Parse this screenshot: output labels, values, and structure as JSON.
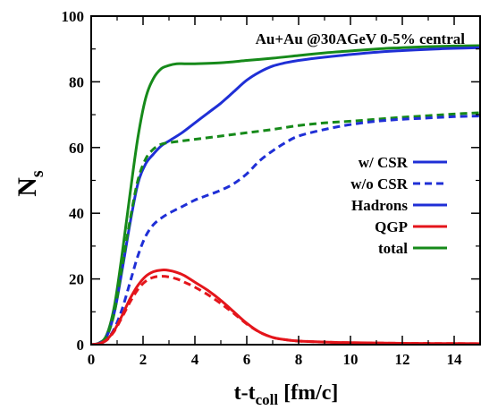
{
  "chart_data": {
    "type": "line",
    "annotation": "Au+Au @30AGeV 0-5% central",
    "xlabel": {
      "main": "t-t",
      "sub": "coll",
      "unit": " [fm/c]"
    },
    "ylabel": {
      "main": "N",
      "sub": "s"
    },
    "xlim": [
      0,
      15
    ],
    "ylim": [
      0,
      100
    ],
    "x_ticks": [
      0,
      2,
      4,
      6,
      8,
      10,
      12,
      14
    ],
    "y_ticks": [
      0,
      20,
      40,
      60,
      80,
      100
    ],
    "grid": false,
    "legend_position": "right-middle",
    "legend": [
      {
        "label": "w/  CSR",
        "color": "#1f2fd6",
        "dash": "solid"
      },
      {
        "label": "w/o CSR",
        "color": "#1f2fd6",
        "dash": "dashed"
      },
      {
        "label": "Hadrons",
        "color": "#1f2fd6",
        "dash": "solid"
      },
      {
        "label": "QGP",
        "color": "#e4151b",
        "dash": "solid"
      },
      {
        "label": "total",
        "color": "#168a1a",
        "dash": "solid"
      }
    ],
    "series": [
      {
        "key": "total_csr",
        "color": "#168a1a",
        "dash": "solid",
        "x": [
          0,
          0.3,
          0.6,
          0.9,
          1.2,
          1.5,
          1.8,
          2.1,
          2.4,
          2.7,
          3.0,
          3.3,
          3.6,
          4.0,
          5.0,
          6.0,
          7.0,
          8.0,
          9.0,
          10.0,
          11.0,
          12.0,
          13.0,
          14.0,
          15.0
        ],
        "y": [
          0,
          0.5,
          3,
          12,
          28,
          46,
          63,
          75,
          81,
          84,
          85,
          85.5,
          85.5,
          85.5,
          85.8,
          86.5,
          87.2,
          88,
          88.8,
          89.4,
          90,
          90.4,
          90.7,
          90.9,
          91
        ]
      },
      {
        "key": "hadron_csr",
        "color": "#1f2fd6",
        "dash": "solid",
        "x": [
          0,
          0.3,
          0.6,
          0.9,
          1.2,
          1.5,
          1.8,
          2.1,
          2.4,
          2.7,
          3.0,
          3.5,
          4.0,
          4.5,
          5.0,
          5.5,
          6.0,
          6.5,
          7.0,
          7.5,
          8.0,
          9.0,
          10.0,
          11.0,
          12.0,
          13.0,
          14.0,
          15.0
        ],
        "y": [
          0,
          0.4,
          2.5,
          10,
          23,
          37,
          49,
          55,
          58,
          60.5,
          62,
          64.5,
          67.5,
          70.5,
          73.5,
          77,
          80.5,
          83,
          84.8,
          85.8,
          86.5,
          87.5,
          88.3,
          89,
          89.5,
          89.9,
          90.2,
          90.4
        ]
      },
      {
        "key": "total_nocsr",
        "color": "#168a1a",
        "dash": "dashed",
        "x": [
          0,
          0.3,
          0.6,
          0.9,
          1.2,
          1.5,
          1.8,
          2.1,
          2.4,
          2.7,
          3.0,
          3.5,
          4.0,
          5.0,
          6.0,
          7.0,
          8.0,
          9.0,
          10.0,
          11.0,
          12.0,
          13.0,
          14.0,
          15.0
        ],
        "y": [
          0,
          0.4,
          2.5,
          10,
          24,
          38,
          50,
          56.5,
          59.5,
          61,
          61.5,
          62,
          62.5,
          63.5,
          64.5,
          65.5,
          66.7,
          67.5,
          68,
          68.6,
          69.2,
          69.7,
          70.2,
          70.6
        ]
      },
      {
        "key": "hadron_nocsr",
        "color": "#1f2fd6",
        "dash": "dashed",
        "x": [
          0,
          0.3,
          0.6,
          0.9,
          1.2,
          1.5,
          1.8,
          2.1,
          2.4,
          2.7,
          3.0,
          3.5,
          4.0,
          4.5,
          5.0,
          5.5,
          6.0,
          6.5,
          7.0,
          7.5,
          8.0,
          9.0,
          10.0,
          11.0,
          12.0,
          13.0,
          14.0,
          15.0
        ],
        "y": [
          0,
          0.3,
          1.5,
          5,
          11,
          19,
          27,
          33,
          36.5,
          38.5,
          40,
          42,
          44,
          45.5,
          47,
          49,
          52,
          56,
          59,
          61.5,
          63.5,
          65.5,
          67,
          68,
          68.6,
          69,
          69.4,
          69.6
        ]
      },
      {
        "key": "qgp_csr",
        "color": "#e4151b",
        "dash": "solid",
        "x": [
          0,
          0.3,
          0.6,
          0.9,
          1.2,
          1.5,
          1.8,
          2.1,
          2.4,
          2.7,
          3.0,
          3.3,
          3.6,
          4.0,
          4.5,
          5.0,
          5.5,
          6.0,
          6.5,
          7.0,
          7.5,
          8.0,
          9.0,
          10.0,
          12.0,
          15.0
        ],
        "y": [
          0,
          0.3,
          1.5,
          4.5,
          9,
          14,
          18,
          20.8,
          22.2,
          22.7,
          22.6,
          22,
          21,
          19,
          16.5,
          13.5,
          10,
          6.5,
          3.8,
          2.2,
          1.5,
          1.1,
          0.8,
          0.6,
          0.4,
          0.3
        ]
      },
      {
        "key": "qgp_nocsr",
        "color": "#e4151b",
        "dash": "dashed",
        "x": [
          0,
          0.3,
          0.6,
          0.9,
          1.2,
          1.5,
          1.8,
          2.1,
          2.4,
          2.7,
          3.0,
          3.3,
          3.6,
          4.0,
          4.5,
          5.0,
          5.5,
          6.0,
          6.5,
          7.0,
          7.5,
          8.0,
          9.0,
          10.0,
          12.0,
          15.0
        ],
        "y": [
          0,
          0.3,
          1.4,
          4.2,
          8.5,
          13,
          16.8,
          19.3,
          20.5,
          20.8,
          20.6,
          20,
          19,
          17.5,
          15.2,
          12.5,
          9.5,
          6.3,
          3.8,
          2.2,
          1.5,
          1.1,
          0.8,
          0.6,
          0.4,
          0.3
        ]
      }
    ]
  }
}
